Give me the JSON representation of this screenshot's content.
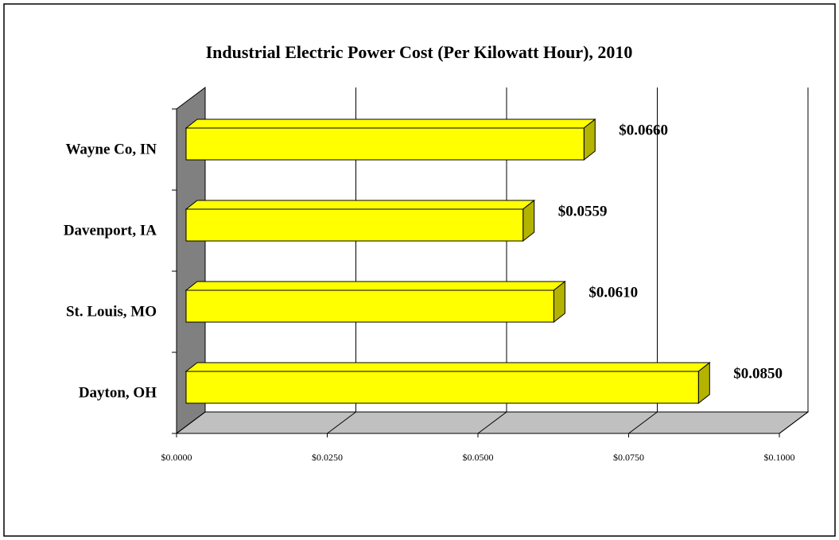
{
  "chart_data": {
    "type": "bar3d_horizontal",
    "title": "Industrial Electric Power Cost (Per Kilowatt Hour), 2010",
    "categories": [
      "Wayne Co, IN",
      "Davenport, IA",
      "St. Louis, MO",
      "Dayton, OH"
    ],
    "values": [
      0.066,
      0.0559,
      0.061,
      0.085
    ],
    "value_labels": [
      "$0.0660",
      "$0.0559",
      "$0.0610",
      "$0.0850"
    ],
    "color": "#ffff00",
    "xlim": [
      0,
      0.1
    ],
    "xticks": [
      {
        "value": 0,
        "label": "$0.0000"
      },
      {
        "value": 0.025,
        "label": "$0.0250"
      },
      {
        "value": 0.05,
        "label": "$0.0500"
      },
      {
        "value": 0.075,
        "label": "$0.0750"
      },
      {
        "value": 0.1,
        "label": "$0.1000"
      }
    ],
    "grid": true
  }
}
